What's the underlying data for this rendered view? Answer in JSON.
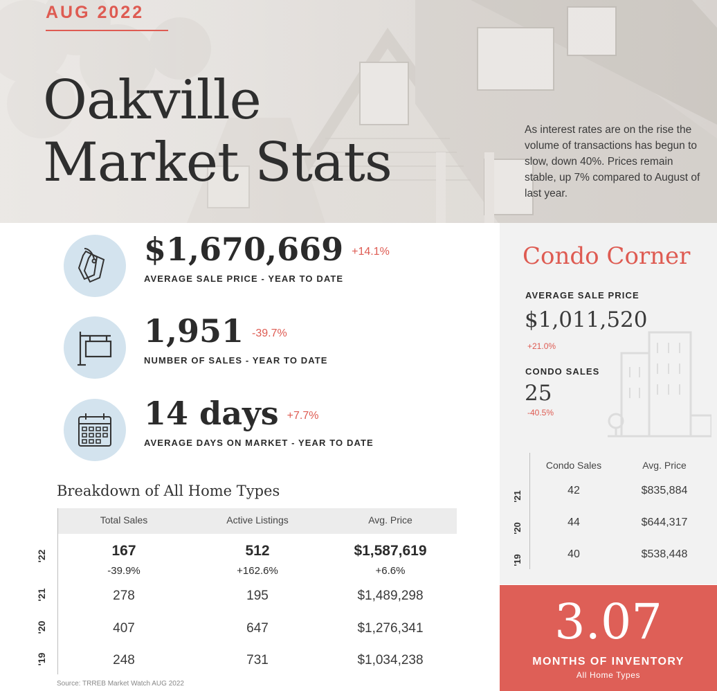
{
  "header": {
    "date": "AUG 2022",
    "title_line1": "Oakville",
    "title_line2": "Market Stats",
    "intro": "As interest rates are on the rise the volume of transactions has begun to slow, down 40%.  Prices remain stable, up 7% compared to August of last year."
  },
  "stats": [
    {
      "icon": "price-tag-icon",
      "value": "$1,670,669",
      "change": "+14.1%",
      "label": "AVERAGE SALE PRICE - YEAR TO DATE"
    },
    {
      "icon": "sale-sign-icon",
      "value": "1,951",
      "change": "-39.7%",
      "label": "NUMBER OF SALES - YEAR TO DATE"
    },
    {
      "icon": "calendar-icon",
      "value": "14 days",
      "change": "+7.7%",
      "label": "AVERAGE DAYS ON MARKET - YEAR TO DATE"
    }
  ],
  "breakdown": {
    "title": "Breakdown of All Home Types",
    "headers": [
      "Total Sales",
      "Active Listings",
      "Avg. Price"
    ],
    "rows": [
      {
        "year": "'22",
        "values": [
          "167",
          "512",
          "$1,587,619"
        ],
        "changes": [
          "-39.9%",
          "+162.6%",
          "+6.6%"
        ]
      },
      {
        "year": "'21",
        "values": [
          "278",
          "195",
          "$1,489,298"
        ]
      },
      {
        "year": "'20",
        "values": [
          "407",
          "647",
          "$1,276,341"
        ]
      },
      {
        "year": "'19",
        "values": [
          "248",
          "731",
          "$1,034,238"
        ]
      }
    ],
    "source": "Source: TRREB Market Watch AUG 2022"
  },
  "condo": {
    "title": "Condo Corner",
    "avg_price_label": "AVERAGE SALE PRICE",
    "avg_price": "$1,011,520",
    "avg_price_change": "+21.0%",
    "sales_label": "CONDO SALES",
    "sales": "25",
    "sales_change": "-40.5%",
    "table_headers": [
      "Condo Sales",
      "Avg. Price"
    ],
    "table_rows": [
      {
        "year": "'21",
        "sales": "42",
        "price": "$835,884"
      },
      {
        "year": "'20",
        "sales": "44",
        "price": "$644,317"
      },
      {
        "year": "'19",
        "sales": "40",
        "price": "$538,448"
      }
    ]
  },
  "inventory": {
    "value": "3.07",
    "label": "MONTHS OF INVENTORY",
    "sub": "All Home Types"
  },
  "colors": {
    "accent": "#de5b52",
    "icon_circle": "#d3e3ee",
    "panel": "#f2f2f2"
  }
}
